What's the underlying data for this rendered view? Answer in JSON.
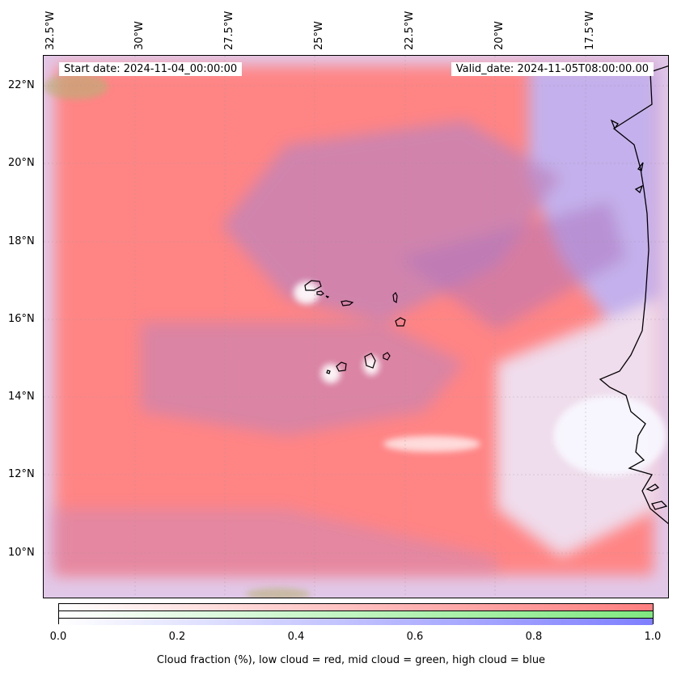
{
  "map": {
    "start_date_text": "Start date: 2024-11-04_00:00:00",
    "valid_date_text": "Valid_date: 2024-11-05T08:00:00.00",
    "longitude_labels": [
      "32.5°W",
      "30°W",
      "27.5°W",
      "25°W",
      "22.5°W",
      "20°W",
      "17.5°W"
    ],
    "latitude_labels": [
      "22°N",
      "20°N",
      "18°N",
      "16°N",
      "14°N",
      "12°N",
      "10°N"
    ],
    "colors": {
      "low_cloud": "#ff7f7f",
      "mid_cloud": "#80e880",
      "high_cloud": "#7f7fff",
      "coastline": "#000000"
    }
  },
  "colorbar": {
    "ticks": [
      "0.0",
      "0.2",
      "0.4",
      "0.6",
      "0.8",
      "1.0"
    ],
    "label": "Cloud fraction (%), low cloud = red, mid cloud = green, high cloud = blue"
  }
}
